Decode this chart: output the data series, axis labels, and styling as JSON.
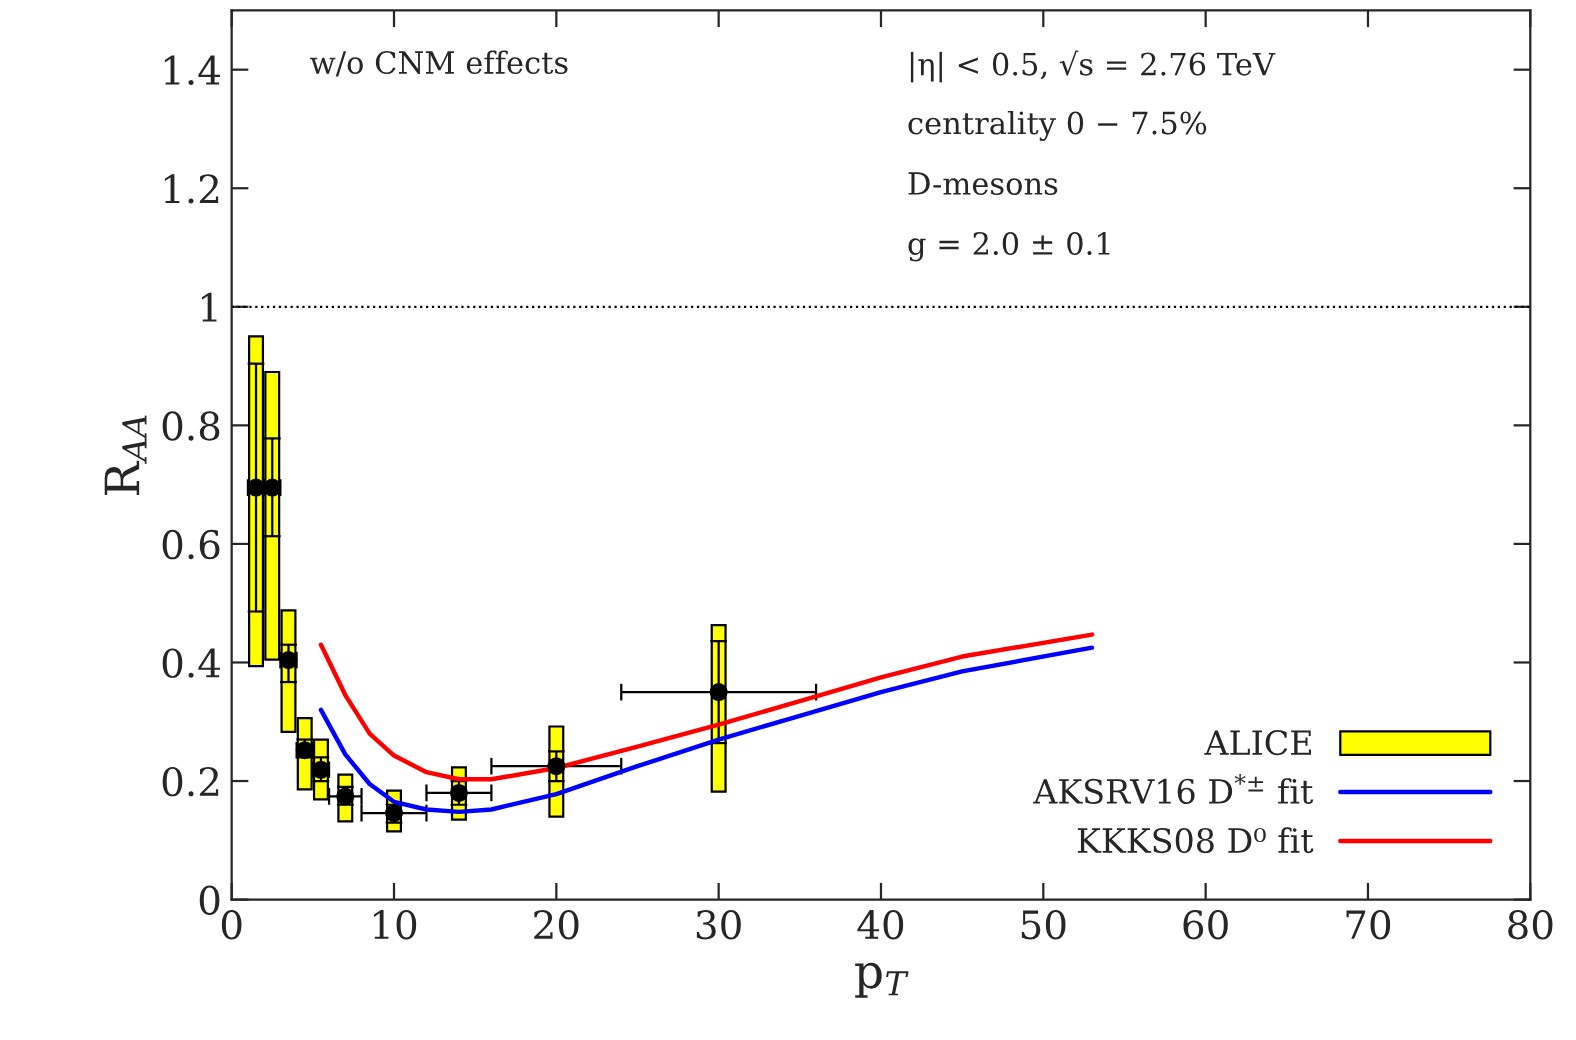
{
  "chart_data": {
    "type": "line",
    "xlabel": "p$_{T}$",
    "ylabel": "R$_{AA}$",
    "xlim": [
      0,
      80
    ],
    "xticks": [
      0,
      10,
      20,
      30,
      40,
      50,
      60,
      70,
      80
    ],
    "ylim": [
      0,
      1.5
    ],
    "yticks": [
      0,
      0.2,
      0.4,
      0.6,
      0.8,
      1,
      1.2,
      1.4
    ],
    "grid": false,
    "legend": "bottom right",
    "ref_lines": [
      {
        "axis": "y",
        "value": 1,
        "color": "#000000",
        "line_style": "dotted"
      }
    ],
    "annotations": [
      "w/o CNM effects",
      "|η| < 0.5, √s = 2.76 TeV",
      "centrality 0 − 7.5%",
      "D-mesons",
      "g = 2.0 ± 0.1"
    ],
    "series": [
      {
        "name": "ALICE",
        "type": "bar",
        "color": "#ffff00",
        "x": [
          1.5,
          2.5,
          3.5,
          4.5,
          5.5,
          7,
          10,
          14,
          20,
          30
        ],
        "base": [
          0.394,
          0.405,
          0.283,
          0.186,
          0.169,
          0.132,
          0.115,
          0.135,
          0.14,
          0.182
        ],
        "values": [
          0.556,
          0.485,
          0.205,
          0.12,
          0.101,
          0.079,
          0.069,
          0.088,
          0.152,
          0.281
        ]
      },
      {
        "type": "scatter",
        "color": "#000000",
        "marker": "circle",
        "x": [
          1.5,
          2.5,
          3.5,
          4.5,
          5.5,
          7,
          10,
          14,
          20,
          30
        ],
        "values": [
          0.695,
          0.695,
          0.404,
          0.252,
          0.219,
          0.174,
          0.146,
          0.18,
          0.225,
          0.35
        ],
        "errors": [
          [
            0.486,
            0.904
          ],
          [
            0.613,
            0.778
          ],
          [
            0.367,
            0.43
          ],
          [
            0.24,
            0.27
          ],
          [
            0.2,
            0.24
          ],
          [
            0.16,
            0.19
          ],
          [
            0.13,
            0.16
          ],
          [
            0.16,
            0.2
          ],
          [
            0.2,
            0.25
          ],
          [
            0.264,
            0.436
          ]
        ],
        "xerrors": [
          0.5,
          0.5,
          0.5,
          0.5,
          0.5,
          1,
          2,
          2,
          4,
          6
        ]
      },
      {
        "name": "AKSRV16 D$^{*±}$ fit",
        "color": "#0000ff",
        "x": [
          5.5,
          7,
          8.5,
          10,
          12,
          14,
          16,
          20,
          25,
          30,
          35,
          40,
          45,
          53
        ],
        "values": [
          0.32,
          0.245,
          0.195,
          0.165,
          0.152,
          0.148,
          0.152,
          0.178,
          0.225,
          0.27,
          0.31,
          0.35,
          0.385,
          0.425
        ]
      },
      {
        "name": "KKKS08 D⁰ fit",
        "color": "#ff0000",
        "x": [
          5.5,
          7,
          8.5,
          10,
          12,
          14,
          16,
          20,
          25,
          30,
          35,
          40,
          45,
          53
        ],
        "values": [
          0.43,
          0.345,
          0.28,
          0.243,
          0.215,
          0.203,
          0.203,
          0.222,
          0.258,
          0.295,
          0.335,
          0.375,
          0.41,
          0.447
        ]
      }
    ]
  }
}
